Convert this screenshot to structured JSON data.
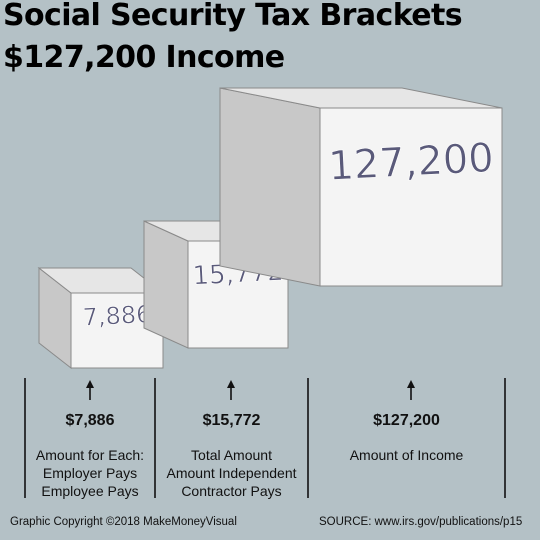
{
  "title_line1": "Social Security Tax Brackets",
  "title_line2": "$127,200 Income",
  "colors": {
    "background": "#b4c1c6",
    "cube_front": "#f4f4f4",
    "cube_top": "#e6e6e6",
    "cube_side": "#c8c8c8",
    "cube_label": "#5a5a7a"
  },
  "chart_data": {
    "type": "bar",
    "categories": [
      "7,886",
      "15,772",
      "127,200"
    ],
    "values": [
      7886,
      15772,
      127200
    ],
    "cube_labels": [
      "7,886",
      "15,772",
      "127,200"
    ],
    "columns": [
      {
        "amount": "$7,886",
        "desc": [
          "Amount for Each:",
          "Employer Pays",
          "Employee Pays"
        ]
      },
      {
        "amount": "$15,772",
        "desc": [
          "Total Amount",
          "Amount Independent",
          "Contractor Pays"
        ]
      },
      {
        "amount": "$127,200",
        "desc": [
          "Amount of Income"
        ]
      }
    ]
  },
  "footer_left": "Graphic Copyright ©2018 MakeMoneyVisual",
  "footer_right": "SOURCE:  www.irs.gov/publications/p15"
}
